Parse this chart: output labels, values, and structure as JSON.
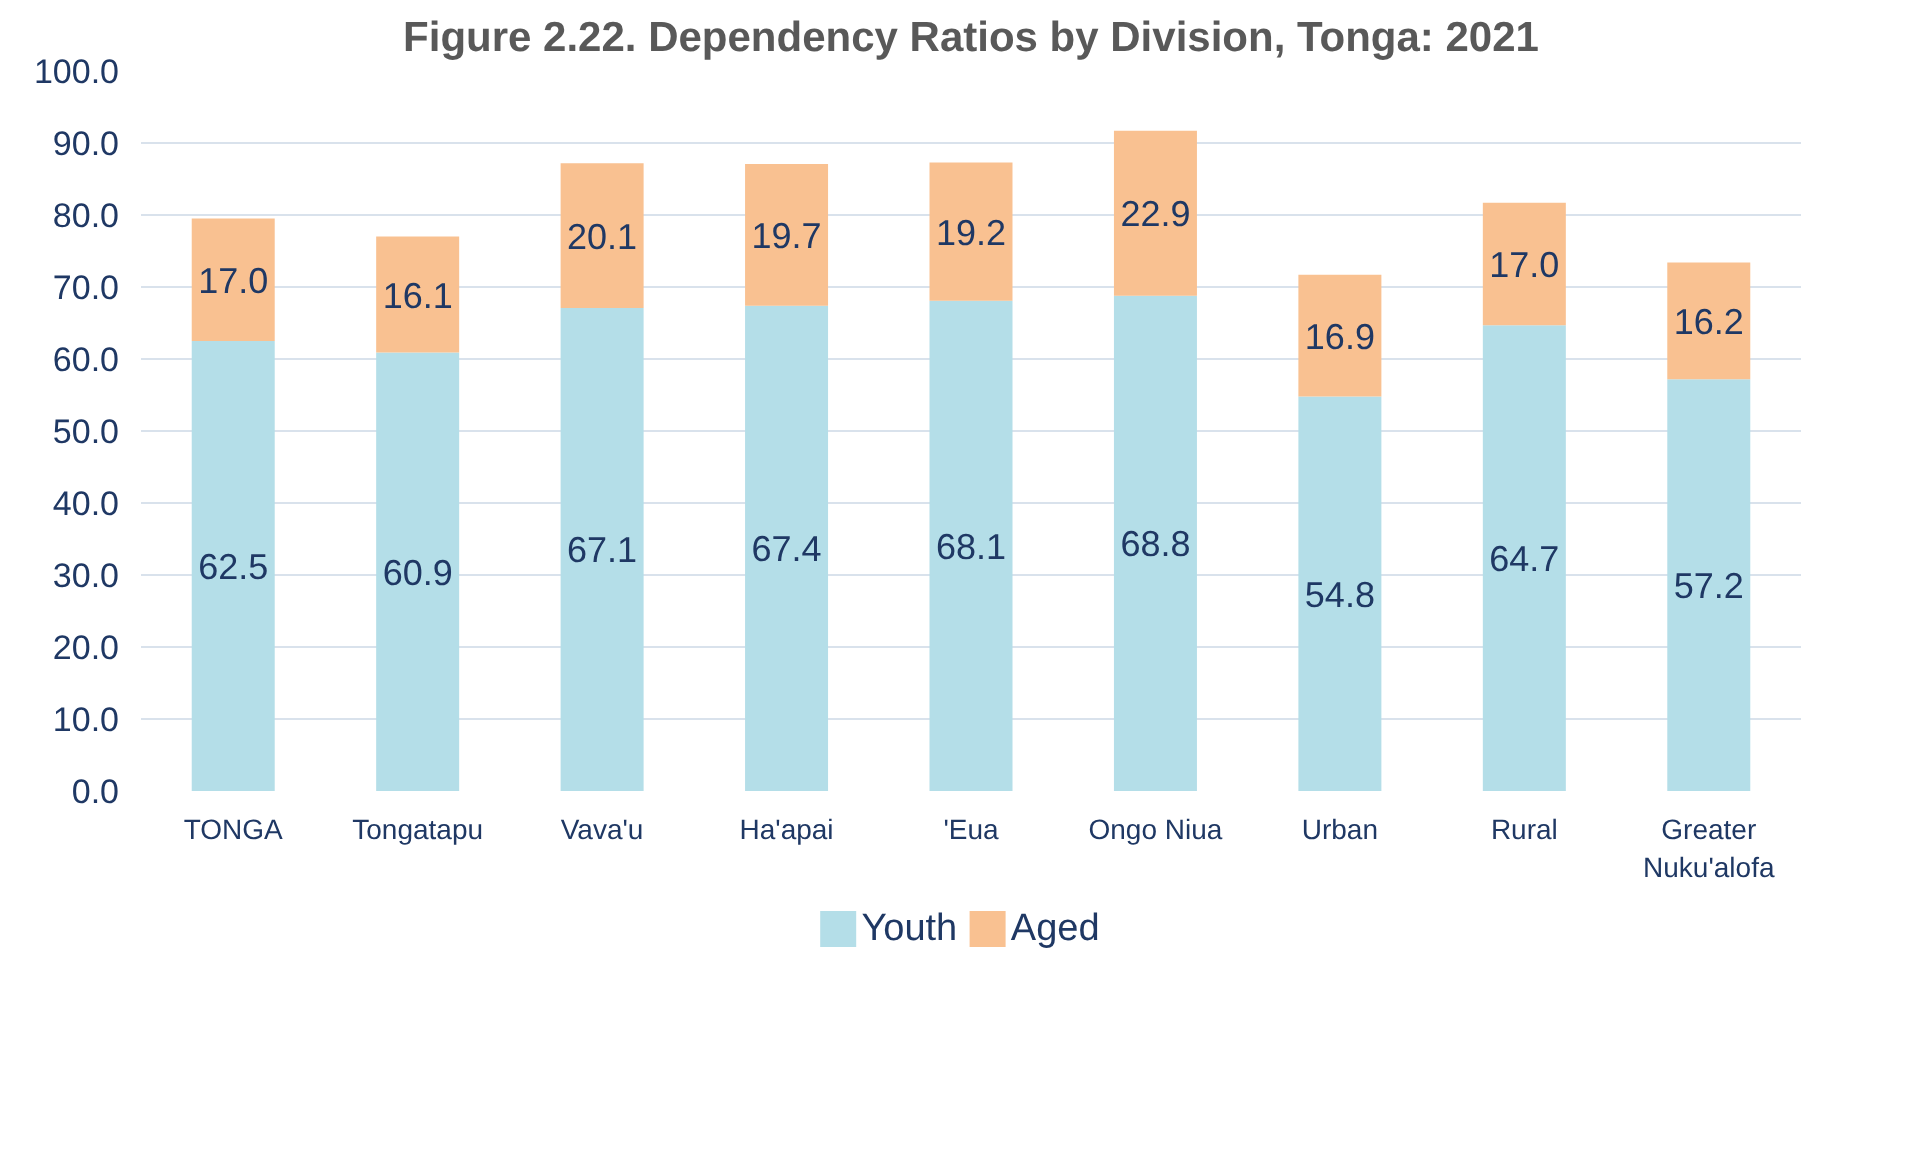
{
  "chart_data": {
    "type": "bar",
    "title": "Figure 2.22. Dependency Ratios by Division, Tonga: 2021",
    "categories": [
      "TONGA",
      "Tongatapu",
      "Vava'u",
      "Ha'apai",
      "'Eua",
      "Ongo Niua",
      "Urban",
      "Rural",
      "Greater Nuku'alofa"
    ],
    "stacked": true,
    "series": [
      {
        "name": "Youth",
        "color": "#b4dee8",
        "values": [
          62.5,
          60.9,
          67.1,
          67.4,
          68.1,
          68.8,
          54.8,
          64.7,
          57.2
        ],
        "value_labels": [
          "62.5",
          "60.9",
          "67.1",
          "67.4",
          "68.1",
          "68.8",
          "54.8",
          "64.7",
          "57.2"
        ]
      },
      {
        "name": "Aged",
        "color": "#f9c191",
        "values": [
          17.0,
          16.1,
          20.1,
          19.7,
          19.2,
          22.9,
          16.9,
          17.0,
          16.2
        ],
        "value_labels": [
          "17.0",
          "16.1",
          "20.1",
          "19.7",
          "19.2",
          "22.9",
          "16.9",
          "17.0",
          "16.2"
        ]
      }
    ],
    "ylim": [
      0,
      100
    ],
    "yticks": [
      {
        "value": 0,
        "label": "0.0"
      },
      {
        "value": 10,
        "label": "10.0"
      },
      {
        "value": 20,
        "label": "20.0"
      },
      {
        "value": 30,
        "label": "30.0"
      },
      {
        "value": 40,
        "label": "40.0"
      },
      {
        "value": 50,
        "label": "50.0"
      },
      {
        "value": 60,
        "label": "60.0"
      },
      {
        "value": 70,
        "label": "70.0"
      },
      {
        "value": 80,
        "label": "80.0"
      },
      {
        "value": 90,
        "label": "90.0"
      },
      {
        "value": 100,
        "label": "100.0"
      }
    ],
    "grid": "y",
    "legend": "bottom"
  }
}
